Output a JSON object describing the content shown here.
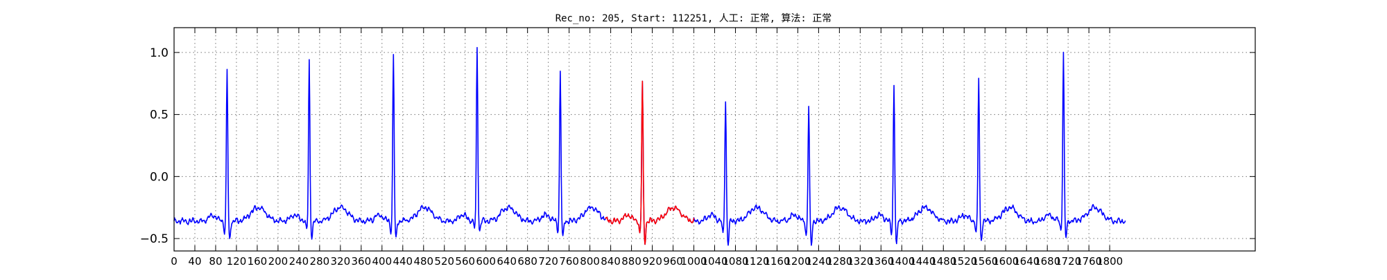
{
  "chart_data": {
    "type": "line",
    "title": "Rec_no: 205, Start: 112251, 人工: 正常, 算法: 正常",
    "xlabel": "",
    "ylabel": "",
    "xlim": [
      0,
      2080
    ],
    "ylim": [
      -0.6,
      1.2
    ],
    "yticks": [
      "−0.5",
      "0.0",
      "0.5",
      "1.0"
    ],
    "ytick_values": [
      -0.5,
      0.0,
      0.5,
      1.0
    ],
    "xtick_values": [
      0,
      40,
      80,
      120,
      160,
      200,
      240,
      280,
      320,
      360,
      400,
      440,
      480,
      520,
      560,
      600,
      640,
      680,
      720,
      760,
      800,
      840,
      880,
      920,
      960,
      1000,
      1040,
      1080,
      1120,
      1160,
      1200,
      1240,
      1280,
      1320,
      1360,
      1400,
      1440,
      1480,
      1520,
      1560,
      1600,
      1640,
      1680,
      1720,
      1760,
      1800
    ],
    "grid": true,
    "baseline": -0.36,
    "series": [
      {
        "color": "#0000ff",
        "x_range": [
          0,
          1830
        ]
      },
      {
        "color": "#ff0000",
        "x_range": [
          830,
          1000
        ]
      }
    ],
    "beats": [
      {
        "x": 102,
        "peak": 0.87,
        "trough": -0.52,
        "color": "#0000ff"
      },
      {
        "x": 260,
        "peak": 0.93,
        "trough": -0.5,
        "color": "#0000ff"
      },
      {
        "x": 422,
        "peak": 0.98,
        "trough": -0.52,
        "color": "#0000ff"
      },
      {
        "x": 583,
        "peak": 1.05,
        "trough": -0.45,
        "color": "#0000ff"
      },
      {
        "x": 743,
        "peak": 0.84,
        "trough": -0.5,
        "color": "#0000ff"
      },
      {
        "x": 901,
        "peak": 0.76,
        "trough": -0.54,
        "color": "#ff0000"
      },
      {
        "x": 1061,
        "peak": 0.62,
        "trough": -0.56,
        "color": "#0000ff"
      },
      {
        "x": 1221,
        "peak": 0.57,
        "trough": -0.57,
        "color": "#0000ff"
      },
      {
        "x": 1385,
        "peak": 0.73,
        "trough": -0.56,
        "color": "#0000ff"
      },
      {
        "x": 1548,
        "peak": 0.8,
        "trough": -0.52,
        "color": "#0000ff"
      },
      {
        "x": 1711,
        "peak": 0.99,
        "trough": -0.5,
        "color": "#0000ff"
      }
    ]
  }
}
